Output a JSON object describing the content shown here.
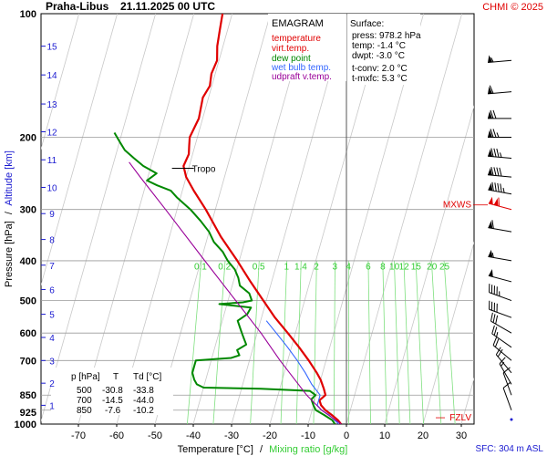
{
  "header": {
    "station": "Praha-Libus",
    "time": "21.11.2025 00 UTC",
    "copyright": "CHMI © 2025"
  },
  "chart_data": {
    "type": "line",
    "diagram": "EMAGRAM",
    "x_axis": {
      "label": "Temperature [°C]",
      "separator": "/",
      "label2": "Mixing ratio [g/kg]",
      "range": [
        -80,
        35
      ],
      "ticks": [
        -70,
        -60,
        -50,
        -40,
        -30,
        -20,
        -10,
        0,
        10,
        20,
        30
      ]
    },
    "y_axis": {
      "label": "Pressure [hPa]",
      "separator": "/",
      "label2": "Altitude [km]",
      "scale": "log",
      "range": [
        1000,
        100
      ],
      "ticks": [
        100,
        200,
        300,
        400,
        500,
        600,
        700,
        850,
        925,
        1000
      ]
    },
    "altitude_ticks": [
      {
        "km": "1",
        "p": 900
      },
      {
        "km": "2",
        "p": 795
      },
      {
        "km": "3",
        "p": 700
      },
      {
        "km": "4",
        "p": 615
      },
      {
        "km": "5",
        "p": 540
      },
      {
        "km": "6",
        "p": 470
      },
      {
        "km": "7",
        "p": 410
      },
      {
        "km": "8",
        "p": 355
      },
      {
        "km": "9",
        "p": 307
      },
      {
        "km": "10",
        "p": 265
      },
      {
        "km": "11",
        "p": 227
      },
      {
        "km": "12",
        "p": 194
      },
      {
        "km": "13",
        "p": 166
      },
      {
        "km": "14",
        "p": 141
      },
      {
        "km": "15",
        "p": 120
      }
    ],
    "mixing_ratio_labels": [
      "0.1",
      "0.2",
      "0.5",
      "1",
      "1.4",
      "2",
      "3",
      "4",
      "6",
      "8",
      "10",
      "12",
      "15",
      "20",
      "25"
    ],
    "mixing_ratio_values": [
      0.1,
      0.2,
      0.5,
      1,
      1.4,
      2,
      3,
      4,
      6,
      8,
      10,
      12,
      15,
      20,
      25
    ],
    "legend": [
      {
        "name": "temperature",
        "color": "#e00000"
      },
      {
        "name": "virt.temp.",
        "color": "#e00000"
      },
      {
        "name": "dew point",
        "color": "#008800"
      },
      {
        "name": "wet bulb temp.",
        "color": "#3366ff"
      },
      {
        "name": "udpraft v.temp.",
        "color": "#990099"
      }
    ],
    "series": [
      {
        "name": "temperature",
        "color": "#e00000",
        "points": [
          [
            1000,
            -1.4
          ],
          [
            978,
            -2.5
          ],
          [
            950,
            -4.5
          ],
          [
            925,
            -6.5
          ],
          [
            900,
            -8.0
          ],
          [
            875,
            -8.8
          ],
          [
            850,
            -7.6
          ],
          [
            820,
            -8.5
          ],
          [
            780,
            -10.0
          ],
          [
            750,
            -11.5
          ],
          [
            700,
            -14.5
          ],
          [
            650,
            -18.0
          ],
          [
            600,
            -22.0
          ],
          [
            550,
            -26.5
          ],
          [
            500,
            -30.8
          ],
          [
            450,
            -35.5
          ],
          [
            400,
            -40.5
          ],
          [
            350,
            -46.5
          ],
          [
            300,
            -52.5
          ],
          [
            270,
            -57.0
          ],
          [
            250,
            -60.0
          ],
          [
            235,
            -61.5
          ],
          [
            220,
            -61.0
          ],
          [
            210,
            -61.5
          ],
          [
            200,
            -62.0
          ],
          [
            180,
            -61.0
          ],
          [
            160,
            -61.5
          ],
          [
            150,
            -60.5
          ],
          [
            140,
            -61.0
          ],
          [
            130,
            -60.5
          ],
          [
            120,
            -61.5
          ],
          [
            110,
            -62.0
          ],
          [
            100,
            -62.5
          ]
        ]
      },
      {
        "name": "dew point",
        "color": "#008800",
        "points": [
          [
            1000,
            -3.0
          ],
          [
            978,
            -4.0
          ],
          [
            950,
            -6.5
          ],
          [
            925,
            -9.0
          ],
          [
            900,
            -10.0
          ],
          [
            870,
            -11.0
          ],
          [
            850,
            -10.2
          ],
          [
            830,
            -12.0
          ],
          [
            820,
            -25.0
          ],
          [
            815,
            -40.0
          ],
          [
            800,
            -42.0
          ],
          [
            780,
            -43.0
          ],
          [
            750,
            -44.0
          ],
          [
            700,
            -44.0
          ],
          [
            690,
            -35.0
          ],
          [
            680,
            -33.0
          ],
          [
            660,
            -34.0
          ],
          [
            640,
            -32.0
          ],
          [
            620,
            -33.0
          ],
          [
            600,
            -34.0
          ],
          [
            580,
            -35.0
          ],
          [
            560,
            -36.0
          ],
          [
            540,
            -34.0
          ],
          [
            520,
            -33.5
          ],
          [
            510,
            -42.0
          ],
          [
            505,
            -36.0
          ],
          [
            500,
            -33.8
          ],
          [
            480,
            -35.0
          ],
          [
            460,
            -38.0
          ],
          [
            440,
            -39.0
          ],
          [
            420,
            -40.5
          ],
          [
            400,
            -43.0
          ],
          [
            380,
            -45.0
          ],
          [
            360,
            -48.0
          ],
          [
            340,
            -50.0
          ],
          [
            320,
            -53.0
          ],
          [
            300,
            -56.5
          ],
          [
            280,
            -61.0
          ],
          [
            270,
            -63.0
          ],
          [
            262,
            -67.0
          ],
          [
            255,
            -70.0
          ],
          [
            245,
            -68.0
          ],
          [
            235,
            -72.0
          ],
          [
            225,
            -75.0
          ],
          [
            215,
            -78.0
          ],
          [
            205,
            -80.0
          ],
          [
            195,
            -82.0
          ]
        ]
      },
      {
        "name": "wet bulb temp.",
        "color": "#3366ff",
        "points": [
          [
            1000,
            -2.0
          ],
          [
            950,
            -5.2
          ],
          [
            925,
            -7.5
          ],
          [
            900,
            -9.0
          ],
          [
            850,
            -9.0
          ],
          [
            800,
            -12.0
          ],
          [
            750,
            -14.5
          ],
          [
            700,
            -17.5
          ],
          [
            650,
            -21.0
          ],
          [
            600,
            -25.0
          ],
          [
            560,
            -28.5
          ]
        ]
      },
      {
        "name": "udpraft v.temp.",
        "color": "#990099",
        "points": [
          [
            1000,
            -1.4
          ],
          [
            925,
            -7.5
          ],
          [
            850,
            -12.5
          ],
          [
            700,
            -22.0
          ],
          [
            600,
            -29.0
          ],
          [
            500,
            -38.0
          ],
          [
            400,
            -49.0
          ],
          [
            300,
            -63.0
          ],
          [
            250,
            -72.0
          ],
          [
            230,
            -76.0
          ]
        ]
      }
    ],
    "markers": [
      {
        "label": "Tropo",
        "p": 238,
        "t": -61.5
      },
      {
        "label": "MXWS",
        "p": 300
      },
      {
        "label": "FZLV",
        "p": 970
      }
    ],
    "surface": {
      "title": "Surface:",
      "press": "press: 978.2 hPa",
      "temp": "temp: -1.4 °C",
      "dwpt": "dwpt: -3.0 °C",
      "tconv": "t-conv: 2.0 °C",
      "tmxfc": "t-mxfc: 5.3 °C"
    },
    "level_table": {
      "headers": [
        "p [hPa]",
        "T",
        "Td [°C]"
      ],
      "rows": [
        [
          "500",
          "-30.8",
          "-33.8"
        ],
        [
          "700",
          "-14.5",
          "-44.0"
        ],
        [
          "850",
          "-7.6",
          "-10.2"
        ]
      ]
    },
    "wind_barbs": [
      {
        "p": 130,
        "dir": 265,
        "kt": 55
      },
      {
        "p": 155,
        "dir": 265,
        "kt": 60
      },
      {
        "p": 180,
        "dir": 270,
        "kt": 70
      },
      {
        "p": 200,
        "dir": 270,
        "kt": 75
      },
      {
        "p": 225,
        "dir": 275,
        "kt": 85
      },
      {
        "p": 250,
        "dir": 275,
        "kt": 90
      },
      {
        "p": 275,
        "dir": 280,
        "kt": 95
      },
      {
        "p": 300,
        "dir": 285,
        "kt": 110
      },
      {
        "p": 340,
        "dir": 280,
        "kt": 60
      },
      {
        "p": 400,
        "dir": 280,
        "kt": 55
      },
      {
        "p": 450,
        "dir": 285,
        "kt": 50
      },
      {
        "p": 500,
        "dir": 290,
        "kt": 45
      },
      {
        "p": 550,
        "dir": 290,
        "kt": 40
      },
      {
        "p": 600,
        "dir": 300,
        "kt": 30
      },
      {
        "p": 650,
        "dir": 305,
        "kt": 25
      },
      {
        "p": 700,
        "dir": 310,
        "kt": 20
      },
      {
        "p": 750,
        "dir": 320,
        "kt": 20
      },
      {
        "p": 800,
        "dir": 330,
        "kt": 15
      },
      {
        "p": 850,
        "dir": 340,
        "kt": 10
      },
      {
        "p": 925,
        "dir": 340,
        "kt": 10
      }
    ],
    "sfc_label": "SFC: 304 m ASL"
  }
}
